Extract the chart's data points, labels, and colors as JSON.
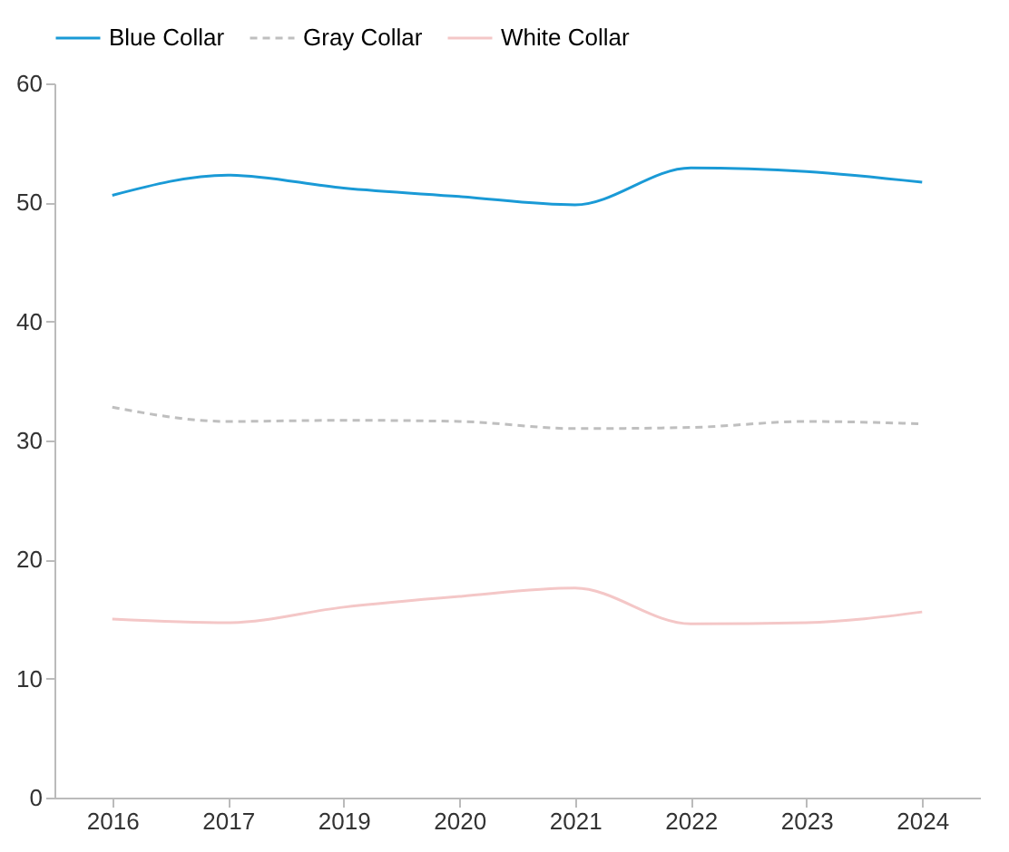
{
  "chart_data": {
    "type": "line",
    "categories": [
      "2016",
      "2017",
      "2019",
      "2020",
      "2021",
      "2022",
      "2023",
      "2024"
    ],
    "series": [
      {
        "name": "Blue Collar",
        "color": "#1a9ad6",
        "line_style": "solid",
        "values": [
          50.6,
          52.3,
          51.2,
          50.5,
          49.8,
          52.9,
          52.6,
          51.7
        ]
      },
      {
        "name": "Gray Collar",
        "color": "#bfbfbf",
        "line_style": "dashed",
        "values": [
          32.8,
          31.6,
          31.7,
          31.6,
          31.0,
          31.1,
          31.6,
          31.4
        ]
      },
      {
        "name": "White Collar",
        "color": "#f4c7c7",
        "line_style": "solid",
        "values": [
          15.0,
          14.7,
          16.0,
          16.9,
          17.6,
          14.6,
          14.7,
          15.6
        ]
      }
    ],
    "ylim": [
      0,
      60
    ],
    "yticks": [
      0,
      10,
      20,
      30,
      40,
      50,
      60
    ],
    "grid": false,
    "legend": "top",
    "marker": "none"
  }
}
